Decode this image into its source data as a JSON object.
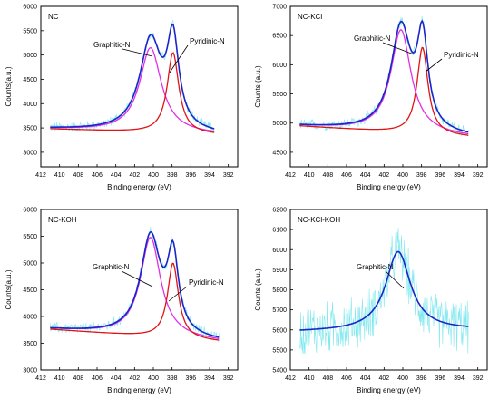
{
  "colors": {
    "raw": "#7fe8ee",
    "envelope": "#1c25c8",
    "graphitic": "#e22fe6",
    "pyridinic": "#e01414",
    "axis": "#000000",
    "text": "#000000"
  },
  "chart_data": [
    {
      "type": "line",
      "title": "NC",
      "xlabel": "Binding energy (eV)",
      "ylabel": "Counts(a.u.)",
      "xlim": [
        412,
        391
      ],
      "x_reversed": true,
      "xticks": [
        412,
        410,
        408,
        406,
        404,
        402,
        400,
        398,
        396,
        394,
        392
      ],
      "ylim": [
        2700,
        6000
      ],
      "yticks": [
        3000,
        3500,
        4000,
        4500,
        5000,
        5500,
        6000
      ],
      "x_range": [
        411,
        393.5
      ],
      "baseline": [
        3480,
        3360
      ],
      "annotations": [
        "Graphitic-N",
        "Pyridinic-N"
      ],
      "peaks": [
        {
          "name": "Graphitic-N",
          "center": 400.3,
          "height": 5150,
          "width": 1.4
        },
        {
          "name": "Pyridinic-N",
          "center": 397.9,
          "height": 5050,
          "width": 0.75
        }
      ],
      "envelope_max": 5630,
      "noise": 90
    },
    {
      "type": "line",
      "title": "NC-KCl",
      "xlabel": "Binding energy (eV)",
      "ylabel": "Counts (a.u.)",
      "xlim": [
        412,
        391
      ],
      "x_reversed": true,
      "xticks": [
        412,
        410,
        408,
        406,
        404,
        402,
        400,
        398,
        396,
        394,
        392
      ],
      "ylim": [
        4250,
        7000
      ],
      "yticks": [
        4500,
        5000,
        5500,
        6000,
        6500,
        7000
      ],
      "x_range": [
        411,
        393
      ],
      "baseline": [
        4950,
        4760
      ],
      "annotations": [
        "Graphitic-N",
        "Pyridinic-N"
      ],
      "peaks": [
        {
          "name": "Graphitic-N",
          "center": 400.2,
          "height": 6600,
          "width": 1.3
        },
        {
          "name": "Pyridinic-N",
          "center": 397.9,
          "height": 6300,
          "width": 0.7
        }
      ],
      "envelope_max": 6750,
      "noise": 80
    },
    {
      "type": "line",
      "title": "NC-KOH",
      "xlabel": "Binding energy (eV)",
      "ylabel": "Counts(a.u.)",
      "xlim": [
        412,
        391
      ],
      "x_reversed": true,
      "xticks": [
        412,
        410,
        408,
        406,
        404,
        402,
        400,
        398,
        396,
        394,
        392
      ],
      "ylim": [
        3000,
        6000
      ],
      "yticks": [
        3000,
        3500,
        4000,
        4500,
        5000,
        5500,
        6000
      ],
      "x_range": [
        411,
        393
      ],
      "baseline": [
        3760,
        3530
      ],
      "annotations": [
        "Graphitic-N",
        "Pyridinic-N"
      ],
      "peaks": [
        {
          "name": "Graphitic-N",
          "center": 400.3,
          "height": 5480,
          "width": 1.3
        },
        {
          "name": "Pyridinic-N",
          "center": 397.9,
          "height": 5000,
          "width": 0.7
        }
      ],
      "envelope_max": 5580,
      "noise": 90
    },
    {
      "type": "line",
      "title": "NC-KCl-KOH",
      "xlabel": "Binding energy (eV)",
      "ylabel": "Counts (a.u.)",
      "xlim": [
        412,
        391
      ],
      "x_reversed": true,
      "xticks": [
        412,
        410,
        408,
        406,
        404,
        402,
        400,
        398,
        396,
        394,
        392
      ],
      "ylim": [
        5400,
        6200
      ],
      "yticks": [
        5400,
        5500,
        5600,
        5700,
        5800,
        5900,
        6000,
        6100,
        6200
      ],
      "x_range": [
        411,
        393
      ],
      "baseline": [
        5590,
        5600
      ],
      "annotations": [
        "Graphitic-N"
      ],
      "peaks": [
        {
          "name": "Graphitic-N",
          "center": 400.5,
          "height": 5990,
          "width": 1.6
        }
      ],
      "envelope_max": 5990,
      "noise": 110
    }
  ]
}
